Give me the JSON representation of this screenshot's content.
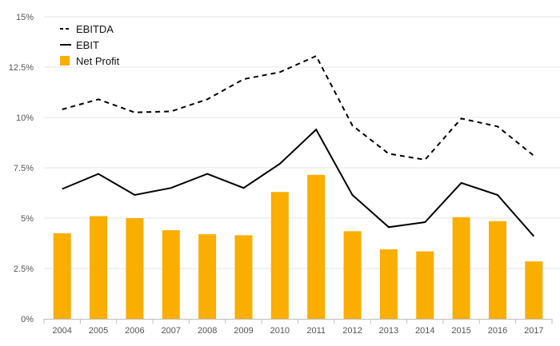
{
  "chart_data": {
    "type": "bar",
    "categories": [
      "2004",
      "2005",
      "2006",
      "2007",
      "2008",
      "2009",
      "2010",
      "2011",
      "2012",
      "2013",
      "2014",
      "2015",
      "2016",
      "2017"
    ],
    "ylim": [
      0,
      15
    ],
    "y_ticks": [
      0,
      2.5,
      5,
      7.5,
      10,
      12.5,
      15
    ],
    "y_tick_labels": [
      "0%",
      "2.5%",
      "5%",
      "7.5%",
      "10%",
      "12.5%",
      "15%"
    ],
    "grid": true,
    "legend_position": "top-left",
    "series": [
      {
        "name": "EBITDA",
        "kind": "line",
        "style": "dashed",
        "color": "#000000",
        "values": [
          10.4,
          10.9,
          10.25,
          10.3,
          10.9,
          11.9,
          12.25,
          13.05,
          9.6,
          8.2,
          7.9,
          9.95,
          9.55,
          8.1
        ]
      },
      {
        "name": "EBIT",
        "kind": "line",
        "style": "solid",
        "color": "#000000",
        "values": [
          6.45,
          7.2,
          6.15,
          6.5,
          7.2,
          6.5,
          7.7,
          9.4,
          6.15,
          4.55,
          4.8,
          6.75,
          6.15,
          4.1
        ]
      },
      {
        "name": "Net Profit",
        "kind": "bar",
        "color": "#F9AE00",
        "values": [
          4.25,
          5.1,
          5.0,
          4.4,
          4.2,
          4.15,
          6.3,
          7.15,
          4.35,
          3.45,
          3.35,
          5.05,
          4.85,
          2.85
        ]
      }
    ]
  }
}
